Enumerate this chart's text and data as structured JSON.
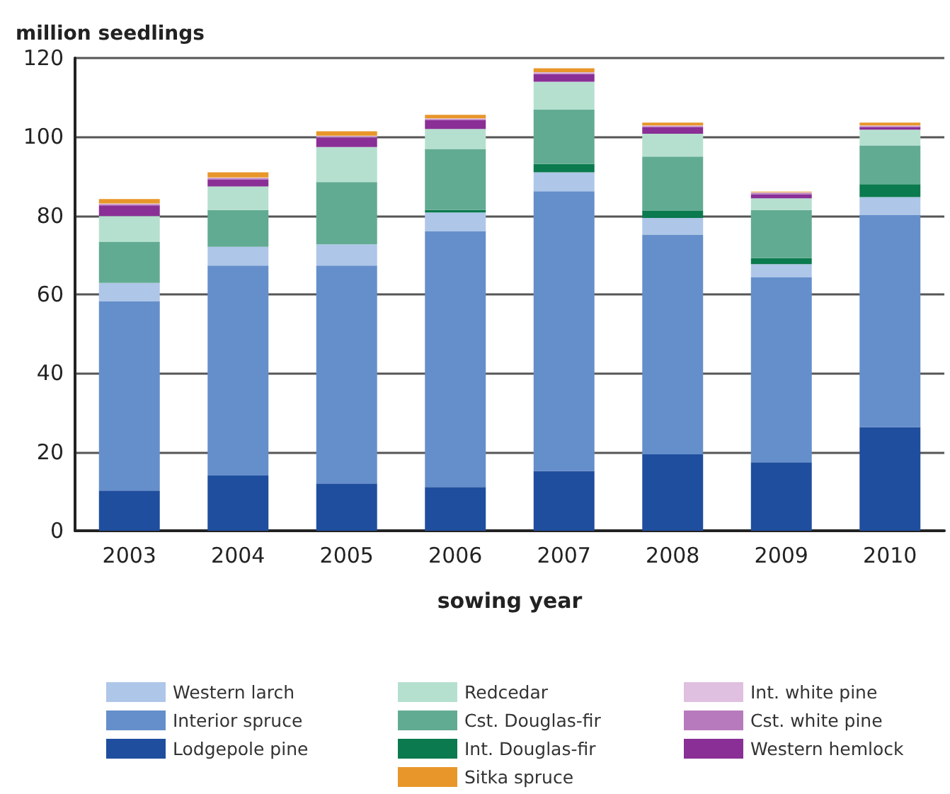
{
  "chart_data": {
    "type": "bar",
    "stacked": true,
    "ylabel": "million seedlings",
    "xlabel": "sowing year",
    "categories": [
      "2003",
      "2004",
      "2005",
      "2006",
      "2007",
      "2008",
      "2009",
      "2010"
    ],
    "ylim": [
      0,
      120
    ],
    "yticks": [
      0,
      20,
      40,
      60,
      80,
      100,
      120
    ],
    "grid": "y",
    "legend": "bottom",
    "series": [
      {
        "name": "Lodgepole pine",
        "color": "#1f4e9e",
        "values": [
          10.2,
          14.0,
          12.0,
          11.1,
          15.2,
          19.4,
          17.4,
          26.3
        ]
      },
      {
        "name": "Interior spruce",
        "color": "#658fcb",
        "values": [
          48.1,
          53.3,
          55.3,
          64.9,
          71.0,
          55.8,
          46.9,
          53.9
        ]
      },
      {
        "name": "Western larch",
        "color": "#aec6e8",
        "values": [
          4.6,
          4.8,
          5.4,
          4.8,
          4.8,
          4.2,
          3.4,
          4.5
        ]
      },
      {
        "name": "Int. Douglas-fir",
        "color": "#0b7a4f",
        "values": [
          0,
          0,
          0,
          0.6,
          2.1,
          1.8,
          1.5,
          3.3
        ]
      },
      {
        "name": "Cst. Douglas-fir",
        "color": "#62ab93",
        "values": [
          10.5,
          9.3,
          15.8,
          15.5,
          13.8,
          13.8,
          12.2,
          9.8
        ]
      },
      {
        "name": "Redcedar",
        "color": "#b5e0cf",
        "values": [
          6.5,
          6.0,
          8.9,
          5.1,
          7.1,
          5.8,
          3.0,
          4.0
        ]
      },
      {
        "name": "Western hemlock",
        "color": "#8a2f96",
        "values": [
          2.7,
          1.8,
          2.4,
          2.2,
          1.9,
          1.6,
          1.0,
          0.6
        ]
      },
      {
        "name": "Cst. white pine",
        "color": "#b77bbd",
        "values": [
          0.3,
          0.3,
          0.3,
          0.3,
          0.3,
          0.3,
          0.3,
          0.3
        ]
      },
      {
        "name": "Int. white pine",
        "color": "#dfc0e0",
        "values": [
          0.2,
          0.2,
          0.2,
          0.2,
          0.2,
          0.2,
          0.2,
          0.2
        ]
      },
      {
        "name": "Sitka spruce",
        "color": "#e8962a",
        "values": [
          1.1,
          1.3,
          1.1,
          0.9,
          1.0,
          0.7,
          0.2,
          0.7
        ]
      }
    ]
  }
}
